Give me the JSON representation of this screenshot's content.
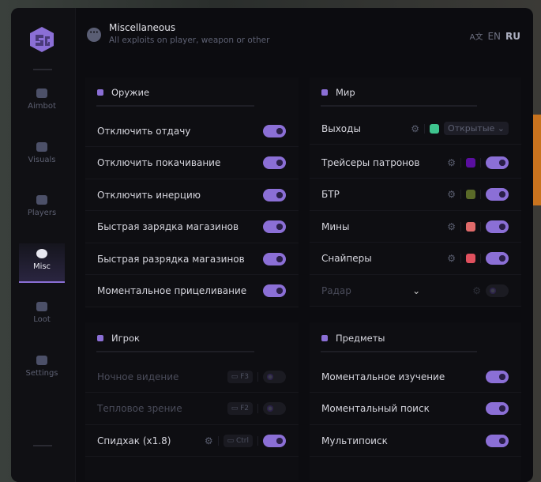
{
  "header": {
    "title": "Miscellaneous",
    "subtitle": "All exploits on player, weapon or other",
    "lang_en": "EN",
    "lang_ru": "RU"
  },
  "sidebar": {
    "items": [
      {
        "label": "Aimbot",
        "icon": "alien-icon"
      },
      {
        "label": "Visuals",
        "icon": "vr-icon"
      },
      {
        "label": "Players",
        "icon": "users-icon"
      },
      {
        "label": "Misc",
        "icon": "dots-icon",
        "active": true
      },
      {
        "label": "Loot",
        "icon": "briefcase-icon"
      },
      {
        "label": "Settings",
        "icon": "list-icon"
      }
    ]
  },
  "weapon": {
    "title": "Оружие",
    "rows": [
      {
        "label": "Отключить отдачу",
        "on": true
      },
      {
        "label": "Отключить покачивание",
        "on": true
      },
      {
        "label": "Отключить инерцию",
        "on": true
      },
      {
        "label": "Быстрая зарядка магазинов",
        "on": true
      },
      {
        "label": "Быстрая разрядка магазинов",
        "on": true
      },
      {
        "label": "Моментальное прицеливание",
        "on": true
      }
    ]
  },
  "world": {
    "title": "Мир",
    "exits": {
      "label": "Выходы",
      "color": "#3ec48e",
      "select": "Открытые"
    },
    "rows": [
      {
        "label": "Трейсеры патронов",
        "color": "#5a0fa0",
        "on": true
      },
      {
        "label": "БТР",
        "color": "#5a6a28",
        "on": true
      },
      {
        "label": "Мины",
        "color": "#e06a6a",
        "on": true
      },
      {
        "label": "Снайперы",
        "color": "#e0505e",
        "on": true
      }
    ],
    "radar": {
      "label": "Радар",
      "on": false
    }
  },
  "player": {
    "title": "Игрок",
    "rows": [
      {
        "label": "Ночное видение",
        "key": "F3",
        "on": false
      },
      {
        "label": "Тепловое зрение",
        "key": "F2",
        "on": false
      },
      {
        "label": "Спидхак (x1.8)",
        "key": "Ctrl",
        "on": true
      }
    ]
  },
  "items": {
    "title": "Предметы",
    "rows": [
      {
        "label": "Моментальное изучение",
        "on": true
      },
      {
        "label": "Моментальный поиск",
        "on": true
      },
      {
        "label": "Мультипоиск",
        "on": true
      }
    ]
  },
  "colors": {
    "accent": "#8b6fd6"
  }
}
